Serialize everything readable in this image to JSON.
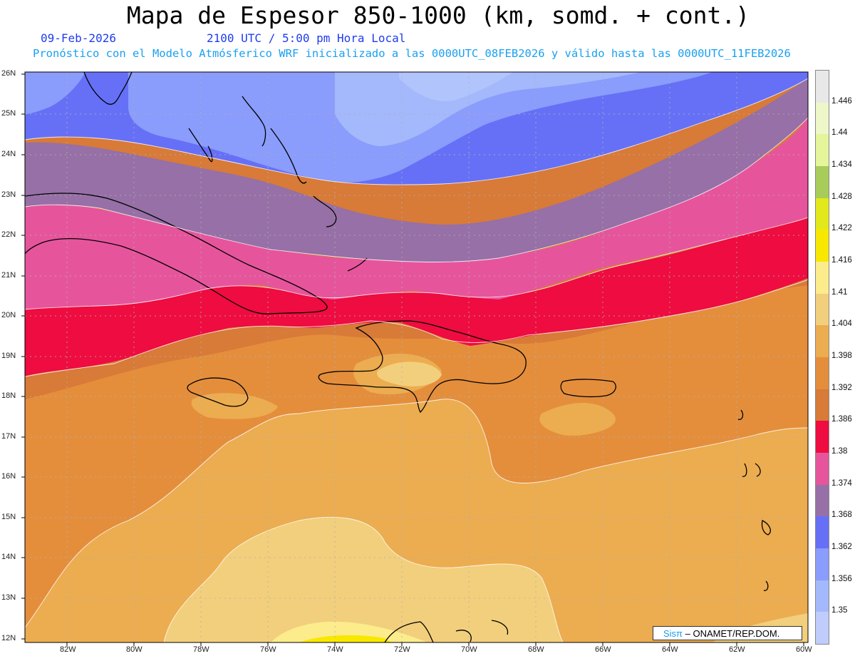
{
  "header": {
    "title": "Mapa de Espesor 850-1000 (km, somd. + cont.)",
    "date": "09-Feb-2026",
    "time": "2100 UTC / 5:00 pm Hora Local",
    "model_line": "Pronóstico con el Modelo Atmósferico WRF inicializado a las 0000UTC_08FEB2026 y válido hasta las  0000UTC_11FEB2026"
  },
  "map": {
    "lat_labels": [
      "26N",
      "25N",
      "24N",
      "23N",
      "22N",
      "21N",
      "20N",
      "19N",
      "18N",
      "17N",
      "16N",
      "15N",
      "14N",
      "13N",
      "12N"
    ],
    "lon_labels": [
      "82W",
      "80W",
      "78W",
      "76W",
      "74W",
      "72W",
      "70W",
      "68W",
      "66W",
      "64W",
      "62W",
      "60W"
    ],
    "credit_brand": "Sisπ",
    "credit_text": " – ONAMET/REP.DOM."
  },
  "colorbar": {
    "levels": [
      "1.446",
      "1.44",
      "1.434",
      "1.428",
      "1.422",
      "1.416",
      "1.41",
      "1.404",
      "1.398",
      "1.392",
      "1.386",
      "1.38",
      "1.374",
      "1.368",
      "1.362",
      "1.356",
      "1.35"
    ],
    "colors": [
      "#e8e8e8",
      "#eef7c8",
      "#e4f59a",
      "#a8cc5a",
      "#e2e81a",
      "#f8e800",
      "#fcec8c",
      "#f2cf7c",
      "#ecac50",
      "#e48e3c",
      "#d87a38",
      "#ee0c40",
      "#e6559c",
      "#9670a6",
      "#6670f6",
      "#8a9cfc",
      "#a4b8fc",
      "#c0ccfc"
    ]
  }
}
